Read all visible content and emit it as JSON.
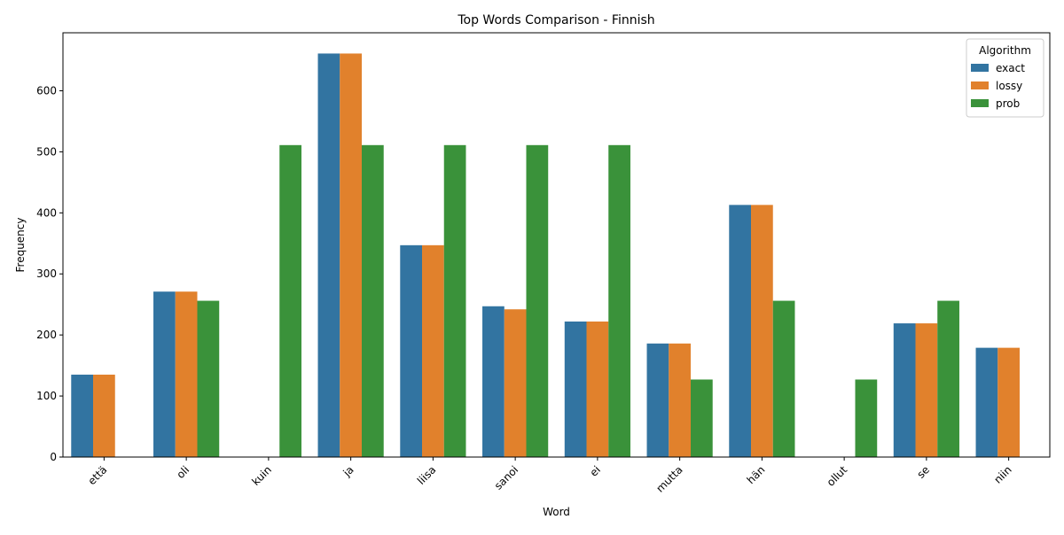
{
  "chart_data": {
    "type": "bar",
    "title": "Top Words Comparison - Finnish",
    "xlabel": "Word",
    "ylabel": "Frequency",
    "categories": [
      "että",
      "oli",
      "kuin",
      "ja",
      "liisa",
      "sanoi",
      "ei",
      "mutta",
      "hän",
      "ollut",
      "se",
      "niin"
    ],
    "series": [
      {
        "name": "exact",
        "color": "#3274a1",
        "values": [
          135,
          271,
          0,
          661,
          347,
          247,
          222,
          186,
          413,
          0,
          219,
          179
        ]
      },
      {
        "name": "lossy",
        "color": "#e1812c",
        "values": [
          135,
          271,
          0,
          661,
          347,
          242,
          222,
          186,
          413,
          0,
          219,
          179
        ]
      },
      {
        "name": "prob",
        "color": "#3a923a",
        "values": [
          0,
          256,
          511,
          511,
          511,
          511,
          511,
          127,
          256,
          127,
          256,
          0
        ]
      }
    ],
    "ylim": [
      0,
      695
    ],
    "yticks": [
      0,
      100,
      200,
      300,
      400,
      500,
      600
    ],
    "grid": false,
    "legend": {
      "title": "Algorithm",
      "position": "top-right"
    }
  }
}
